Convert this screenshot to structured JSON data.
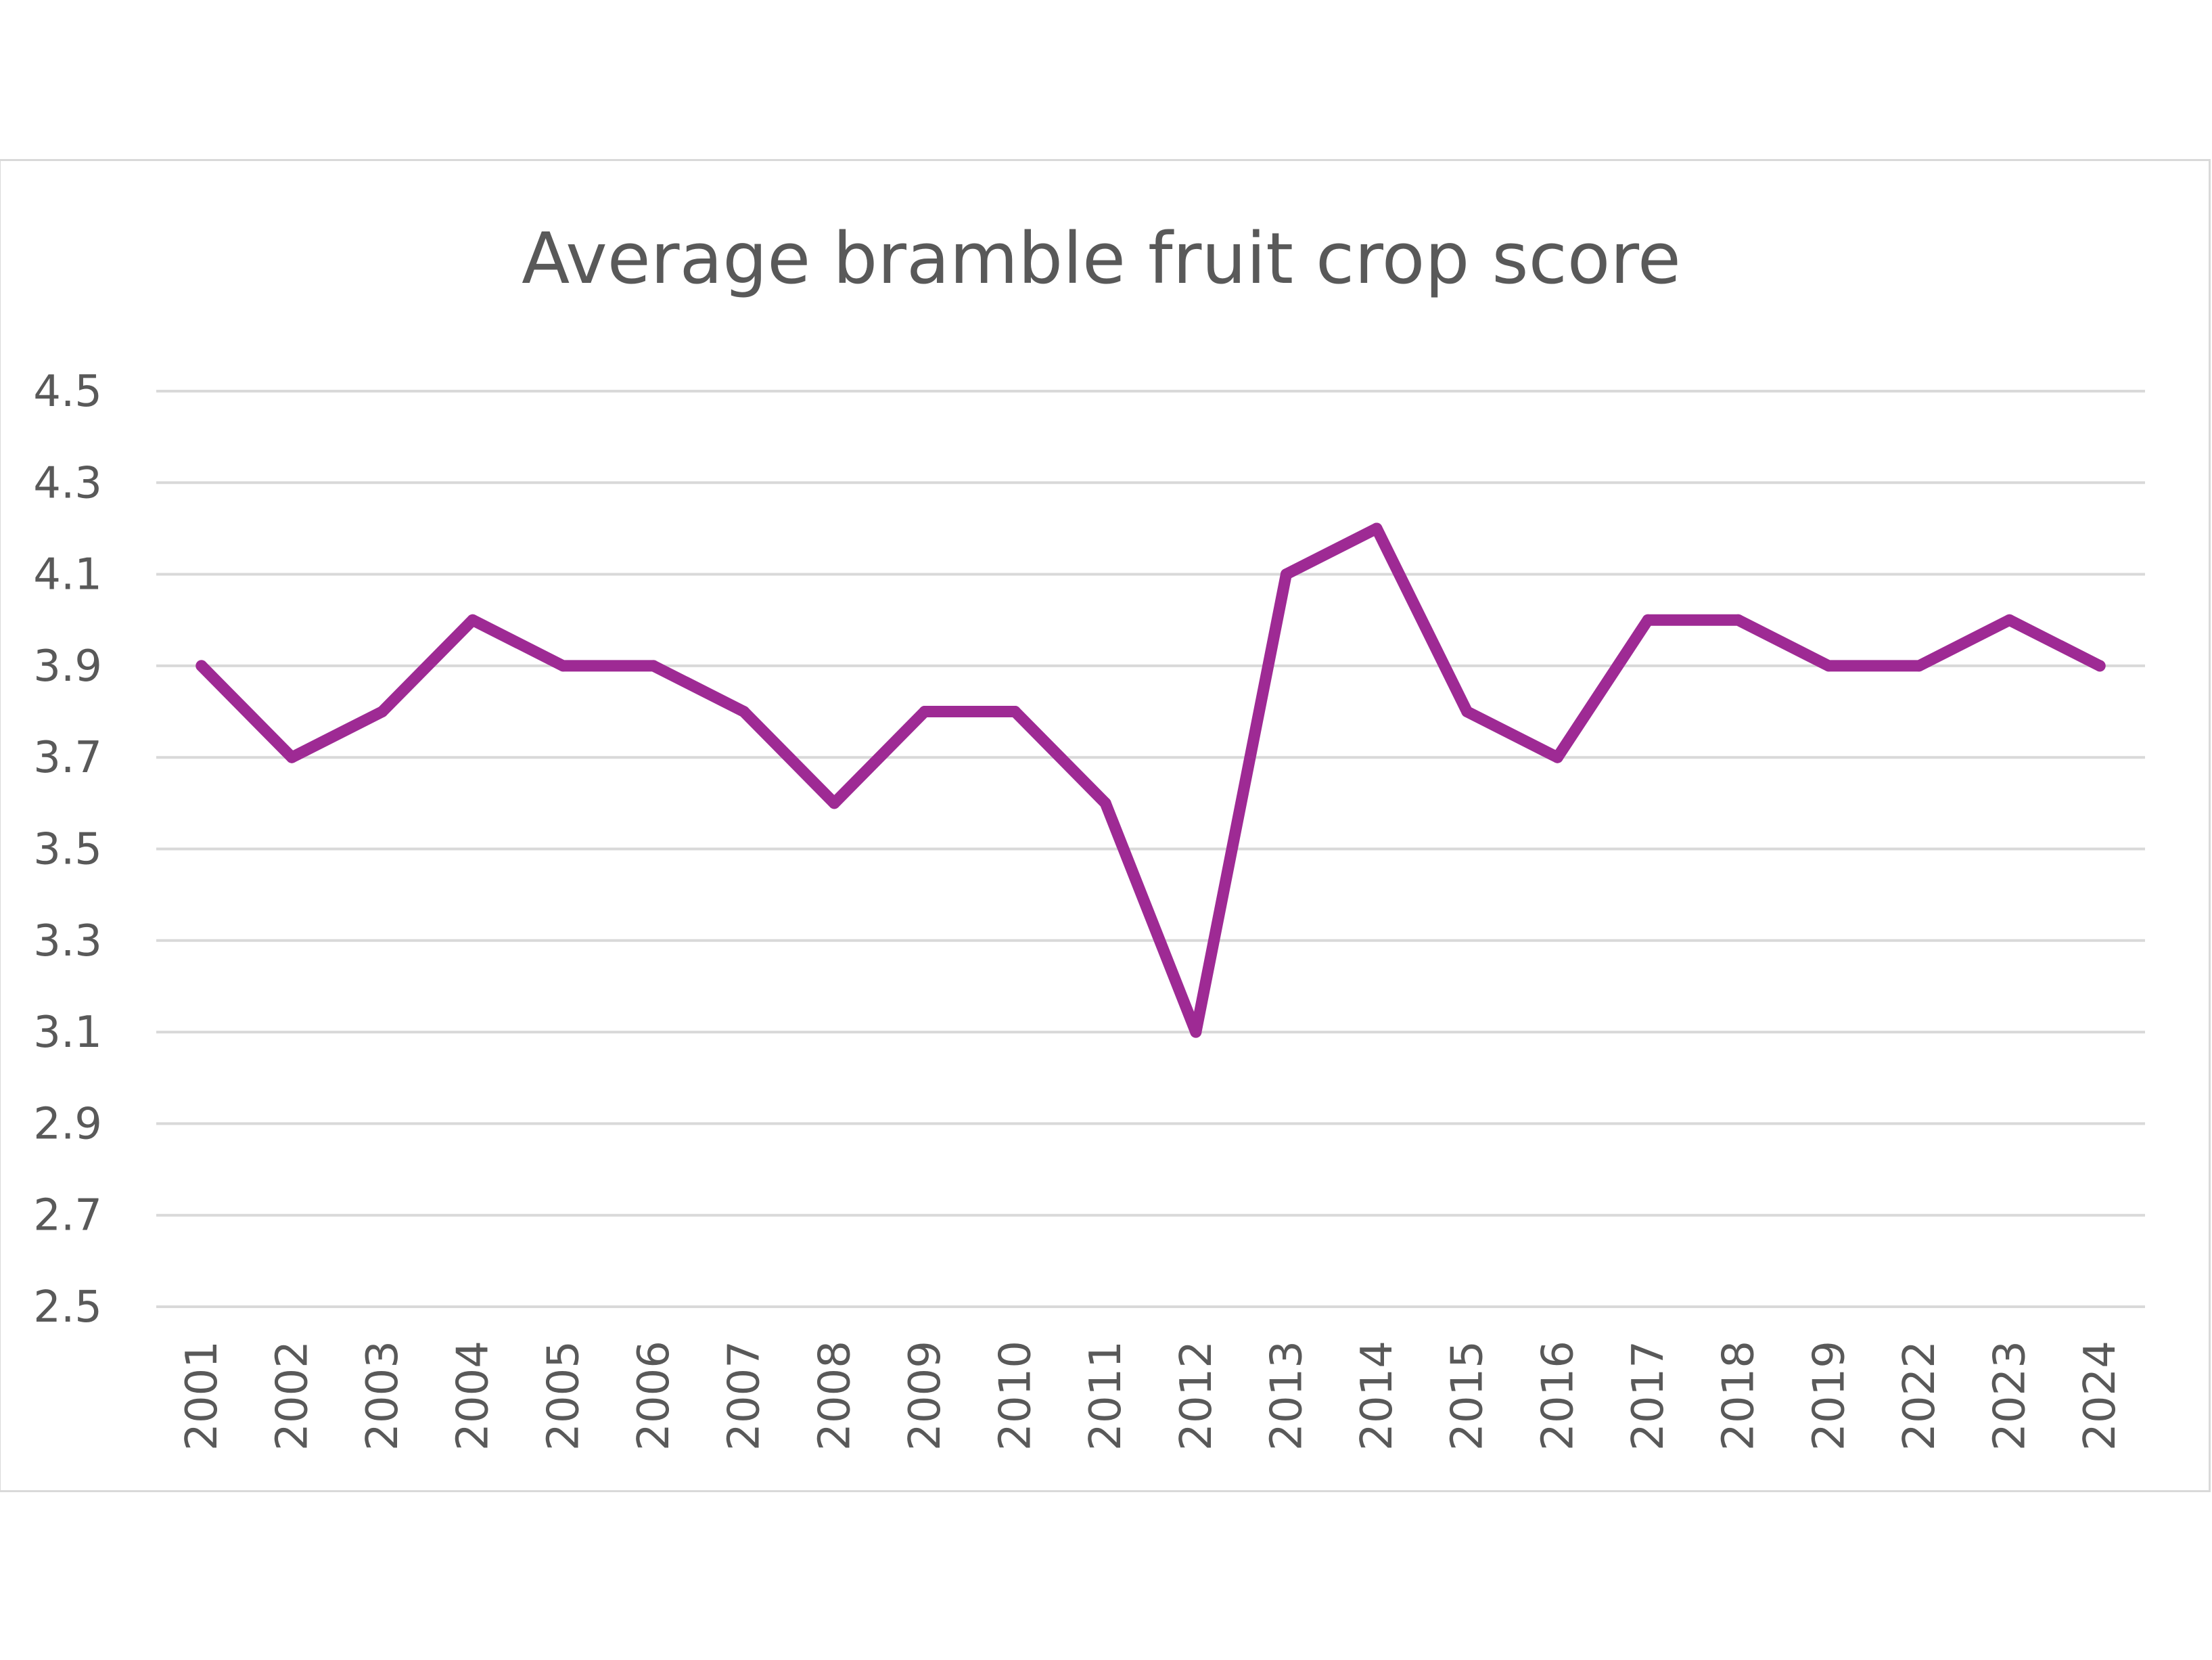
{
  "chart_data": {
    "type": "line",
    "title": "Average bramble fruit crop score",
    "xlabel": "",
    "ylabel": "",
    "categories": [
      "2001",
      "2002",
      "2003",
      "2004",
      "2005",
      "2006",
      "2007",
      "2008",
      "2009",
      "2010",
      "2011",
      "2012",
      "2013",
      "2014",
      "2015",
      "2016",
      "2017",
      "2018",
      "2019",
      "2022",
      "2023",
      "2024"
    ],
    "series": [
      {
        "values": [
          3.9,
          3.7,
          3.8,
          4.0,
          3.9,
          3.9,
          3.8,
          3.6,
          3.8,
          3.8,
          3.6,
          3.1,
          4.1,
          4.2,
          3.8,
          3.7,
          4.0,
          4.0,
          3.9,
          3.9,
          4.0,
          3.9
        ]
      }
    ],
    "ylim": [
      2.5,
      4.5
    ],
    "yticks": [
      "4.5",
      "4.3",
      "4.1",
      "3.9",
      "3.7",
      "3.5",
      "3.3",
      "3.1",
      "2.9",
      "2.7",
      "2.5"
    ],
    "grid": true,
    "legend": "none",
    "line_color": "#9e2a94",
    "grid_color": "#d9d9d9",
    "text_color": "#595959"
  }
}
